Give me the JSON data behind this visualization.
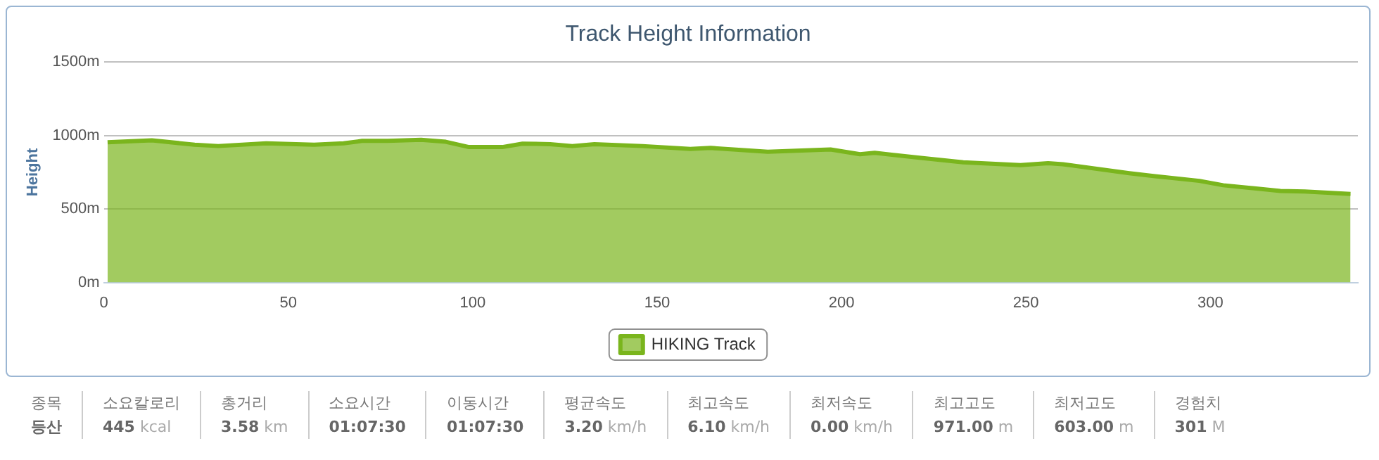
{
  "chart_data": {
    "type": "area",
    "title": "Track Height Information",
    "ylabel": "Height",
    "x": [
      1,
      13,
      24.6,
      31,
      44,
      57,
      65,
      70,
      77,
      86,
      92.7,
      99,
      108,
      113.5,
      121,
      127,
      133,
      146,
      159,
      164.5,
      180,
      197,
      205,
      209,
      222,
      233,
      248.5,
      256,
      260,
      278,
      285,
      297,
      303.5,
      319,
      325.6,
      338
    ],
    "series": [
      {
        "name": "HIKING Track",
        "color": "#7ab51d",
        "values": [
          955,
          968,
          938,
          929,
          948,
          938,
          948,
          964,
          964,
          971,
          958,
          922,
          922,
          945,
          942,
          929,
          942,
          929,
          909,
          916,
          890,
          906,
          873,
          883,
          847,
          818,
          799,
          812,
          805,
          744,
          724,
          692,
          662,
          623,
          620,
          603
        ]
      }
    ],
    "xlim": [
      0,
      340
    ],
    "xticks": [
      0,
      50,
      100,
      150,
      200,
      250,
      300
    ],
    "ylim": [
      0,
      1500
    ],
    "yticks": [
      {
        "value": 0,
        "label": "0m"
      },
      {
        "value": 500,
        "label": "500m"
      },
      {
        "value": 1000,
        "label": "1000m"
      },
      {
        "value": 1500,
        "label": "1500m"
      }
    ],
    "grid": "y",
    "legend": "bottom",
    "marker": "none",
    "annotations": [
      "종목",
      "등산",
      "소요칼로리",
      "445 kcal",
      "총거리",
      "3.58 km",
      "소요시간",
      "01:07:30",
      "이동시간",
      "01:07:30",
      "평균속도",
      "3.20 km/h",
      "최고속도",
      "6.10 km/h",
      "최저속도",
      "0.00 km/h",
      "최고고도",
      "971.00 m",
      "최저고도",
      "603.00 m",
      "경험치",
      "301 M"
    ]
  }
}
